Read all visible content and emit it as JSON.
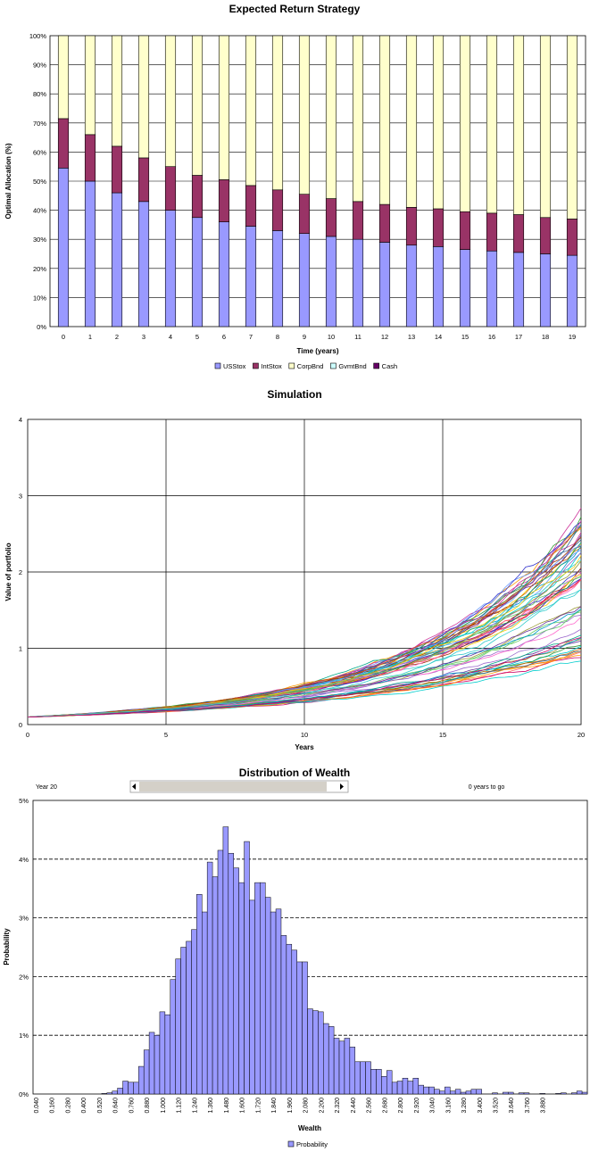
{
  "chart_data": [
    {
      "type": "bar",
      "stacked": true,
      "title": "Expected Return Strategy",
      "xlabel": "Time (years)",
      "ylabel": "Optimal Allocation (%)",
      "ylim": [
        0,
        100
      ],
      "y_ticks": [
        "0%",
        "10%",
        "20%",
        "30%",
        "40%",
        "50%",
        "60%",
        "70%",
        "80%",
        "90%",
        "100%"
      ],
      "categories": [
        "0",
        "1",
        "2",
        "3",
        "4",
        "5",
        "6",
        "7",
        "8",
        "9",
        "10",
        "11",
        "12",
        "13",
        "14",
        "15",
        "16",
        "17",
        "18",
        "19"
      ],
      "grid": true,
      "legend": "bottom",
      "series": [
        {
          "name": "USStox",
          "color": "#9999ff",
          "values": [
            54.5,
            50,
            46,
            43,
            40,
            37.5,
            36,
            34.5,
            33,
            32,
            31,
            30,
            29,
            28,
            27.5,
            26.5,
            26,
            25.5,
            25,
            24.5
          ]
        },
        {
          "name": "IntStox",
          "color": "#993366",
          "values": [
            17,
            16,
            16,
            15,
            15,
            14.5,
            14.5,
            14,
            14,
            13.5,
            13,
            13,
            13,
            13,
            13,
            13,
            13,
            13,
            12.5,
            12.5
          ]
        },
        {
          "name": "CorpBnd",
          "color": "#ffffcc",
          "values": [
            28.5,
            34,
            38,
            42,
            45,
            48,
            49.5,
            51.5,
            53,
            54.5,
            56,
            57,
            58,
            59,
            59.5,
            60.5,
            61,
            61.5,
            62.5,
            63
          ]
        },
        {
          "name": "GvmtBnd",
          "color": "#ccffff",
          "values": [
            0,
            0,
            0,
            0,
            0,
            0,
            0,
            0,
            0,
            0,
            0,
            0,
            0,
            0,
            0,
            0,
            0,
            0,
            0,
            0
          ]
        },
        {
          "name": "Cash",
          "color": "#660066",
          "values": [
            0,
            0,
            0,
            0,
            0,
            0,
            0,
            0,
            0,
            0,
            0,
            0,
            0,
            0,
            0,
            0,
            0,
            0,
            0,
            0
          ]
        }
      ]
    },
    {
      "type": "line",
      "title": "Simulation",
      "xlabel": "Years",
      "ylabel": "Value of portfolio",
      "xlim": [
        0,
        20
      ],
      "ylim": [
        0,
        4
      ],
      "x_ticks": [
        "0",
        "5",
        "10",
        "15",
        "20"
      ],
      "y_ticks": [
        "0",
        "1",
        "2",
        "3",
        "4"
      ],
      "grid": true,
      "n_paths": 60,
      "start_value": 0.1,
      "final_values_range": [
        0.8,
        2.8
      ]
    },
    {
      "type": "bar",
      "title": "Distribution of Wealth",
      "xlabel": "Wealth",
      "ylabel": "Probability",
      "ylim": [
        0,
        5
      ],
      "y_ticks": [
        "0%",
        "1%",
        "2%",
        "3%",
        "4%",
        "5%"
      ],
      "legend": "bottom",
      "series": [
        {
          "name": "Probability",
          "color": "#9999ff"
        }
      ],
      "x_tick_labels": [
        "0.040",
        "0.160",
        "0.280",
        "0.400",
        "0.520",
        "0.640",
        "0.760",
        "0.880",
        "1.000",
        "1.120",
        "1.240",
        "1.360",
        "1.480",
        "1.600",
        "1.720",
        "1.840",
        "1.960",
        "2.080",
        "2.200",
        "2.320",
        "2.440",
        "2.560",
        "2.680",
        "2.800",
        "2.920",
        "3.040",
        "3.160",
        "3.280",
        "3.400",
        "3.520",
        "3.640",
        "3.760",
        "3.880"
      ],
      "bin_start": 0.04,
      "bin_width": 0.04,
      "values": [
        0,
        0,
        0,
        0,
        0,
        0,
        0,
        0,
        0,
        0,
        0,
        0,
        0,
        0.01,
        0.02,
        0.05,
        0.1,
        0.22,
        0.2,
        0.2,
        0.47,
        0.75,
        1.05,
        1,
        1.4,
        1.35,
        1.95,
        2.3,
        2.5,
        2.6,
        2.8,
        3.4,
        3.1,
        3.95,
        3.7,
        4.15,
        4.55,
        4.1,
        3.85,
        3.6,
        4.3,
        3.3,
        3.6,
        3.6,
        3.35,
        3.1,
        3.15,
        2.7,
        2.55,
        2.45,
        2.25,
        2.25,
        1.45,
        1.42,
        1.4,
        1.2,
        1.15,
        0.95,
        0.9,
        0.95,
        0.8,
        0.55,
        0.55,
        0.55,
        0.42,
        0.42,
        0.3,
        0.4,
        0.2,
        0.22,
        0.27,
        0.22,
        0.27,
        0.15,
        0.12,
        0.12,
        0.08,
        0.05,
        0.12,
        0.05,
        0.08,
        0.03,
        0.05,
        0.08,
        0.08,
        0,
        0,
        0.02,
        0,
        0.03,
        0.03,
        0,
        0.02,
        0.02,
        0,
        0,
        0.01,
        0,
        0,
        0.01,
        0.02,
        0,
        0.02,
        0.05,
        0.03
      ]
    }
  ],
  "controls": {
    "year_label": "Year 20",
    "years_to_go_label": "0 years to go",
    "slider_position": 1.0
  }
}
